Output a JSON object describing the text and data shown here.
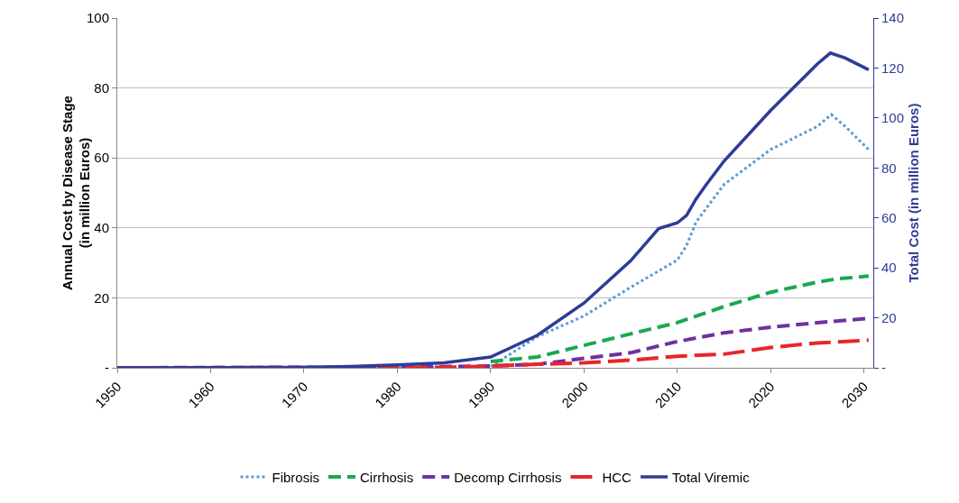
{
  "chart_data": {
    "type": "line",
    "ylabel": "Annual Cost by Disease Stage (in million Euros)",
    "y2label": "Total Cost (in million Euros)",
    "xlim": [
      1950,
      2031
    ],
    "xticks": [
      1950,
      1960,
      1970,
      1980,
      1990,
      2000,
      2010,
      2020,
      2030
    ],
    "ylim": [
      0,
      100
    ],
    "yticks": [
      {
        "value": 0,
        "label": "-"
      },
      20,
      40,
      60,
      80,
      100
    ],
    "y2lim": [
      0,
      140
    ],
    "y2ticks": [
      {
        "value": 0,
        "label": "-"
      },
      20,
      40,
      60,
      80,
      100,
      120,
      140
    ],
    "grid": "y",
    "legend": "bottom",
    "marker": "none",
    "series": [
      {
        "name": "Fibrosis",
        "color": "#5b9bd5",
        "line_style": "dotted",
        "x": [
          1950,
          1980,
          1990,
          1995,
          2000,
          2005,
          2010,
          2011,
          2012,
          2015,
          2020,
          2025,
          2026.5,
          2028,
          2030.5
        ],
        "values": [
          0,
          0,
          0.3,
          8.9,
          14.8,
          23,
          30.8,
          35,
          41.6,
          52.4,
          62.4,
          69,
          72.4,
          69,
          62.4
        ]
      },
      {
        "name": "Cirrhosis",
        "color": "#1aa84f",
        "line_style": "dashed",
        "x": [
          1990,
          1995,
          2000,
          2005,
          2010,
          2015,
          2020,
          2025,
          2027,
          2030.5
        ],
        "values": [
          1.8,
          3.1,
          6.4,
          9.7,
          12.9,
          17.5,
          21.6,
          24.5,
          25.4,
          26.2
        ]
      },
      {
        "name": "Decomp Cirrhosis",
        "color": "#7030a0",
        "line_style": "dashed",
        "x": [
          1950,
          1980,
          1990,
          1995,
          2000,
          2005,
          2010,
          2015,
          2020,
          2025,
          2030.5
        ],
        "values": [
          0,
          0.2,
          0.5,
          1,
          2.7,
          4.3,
          7.5,
          10,
          11.6,
          12.9,
          14.1
        ]
      },
      {
        "name": "HCC",
        "color": "#e8262a",
        "line_style": "longdash",
        "x": [
          1950,
          1980,
          1985,
          1990,
          1995,
          2000,
          2005,
          2010,
          2015,
          2020,
          2025,
          2030.5
        ],
        "values": [
          0,
          0.1,
          0.1,
          0.5,
          1,
          1.4,
          2.2,
          3.3,
          3.9,
          5.8,
          7.1,
          7.9
        ]
      },
      {
        "name": "Total Viremic",
        "color": "#2e3c96",
        "line_style": "solid",
        "axis": "y2",
        "x": [
          1950,
          1970,
          1975,
          1980,
          1985,
          1990,
          1995,
          2000,
          2005,
          2008,
          2010,
          2011,
          2012,
          2013,
          2015,
          2020,
          2025,
          2026.4,
          2028,
          2030.5
        ],
        "values": [
          0,
          0.2,
          0.5,
          1.2,
          2,
          4.3,
          13,
          25.9,
          42.8,
          55.7,
          58,
          61,
          67.5,
          72.8,
          82.7,
          103,
          121.6,
          126,
          124,
          119.3
        ]
      }
    ]
  }
}
